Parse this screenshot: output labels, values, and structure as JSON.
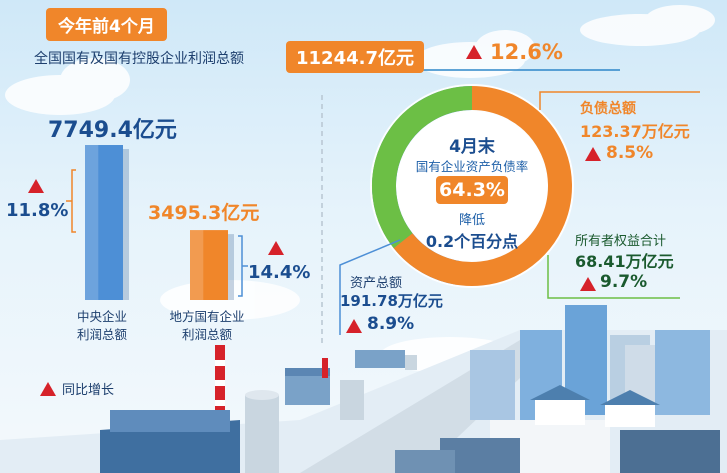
{
  "header": {
    "period_tag": "今年前4个月",
    "profit_label": "全国国有及国有控股企业利润总额",
    "profit_value": "11244.7亿元",
    "profit_growth": "12.6%"
  },
  "chart_data": [
    {
      "type": "bar",
      "categories": [
        "中央企业利润总额",
        "地方国有企业利润总额"
      ],
      "values": [
        7749.4,
        3495.3
      ],
      "value_labels": [
        "7749.4亿元",
        "3495.3亿元"
      ],
      "growth_labels": [
        "11.8%",
        "14.4%"
      ],
      "category_lines": [
        [
          "中央企业",
          "利润总额"
        ],
        [
          "地方国有企业",
          "利润总额"
        ]
      ],
      "colors": [
        "#4d8fd6",
        "#f0862a"
      ],
      "ylim": [
        0,
        8000
      ]
    },
    {
      "type": "pie",
      "center_title": "4月末",
      "center_label": "国有企业资产负债率",
      "center_value": "64.3%",
      "center_note_1": "降低",
      "center_note_2": "0.2个百分点",
      "slices": [
        {
          "name": "负债总额",
          "value": 123.37,
          "value_label": "123.37万亿元",
          "growth": "8.5%",
          "color": "#f0862a"
        },
        {
          "name": "所有者权益合计",
          "value": 68.41,
          "value_label": "68.41万亿元",
          "growth": "9.7%",
          "color": "#6cbf45"
        }
      ],
      "total": {
        "name": "资产总额",
        "value_label": "191.78万亿元",
        "growth": "8.9%",
        "color": "#4d8fd6"
      }
    }
  ],
  "legend": {
    "label": "同比增长",
    "color": "#d6222a"
  }
}
